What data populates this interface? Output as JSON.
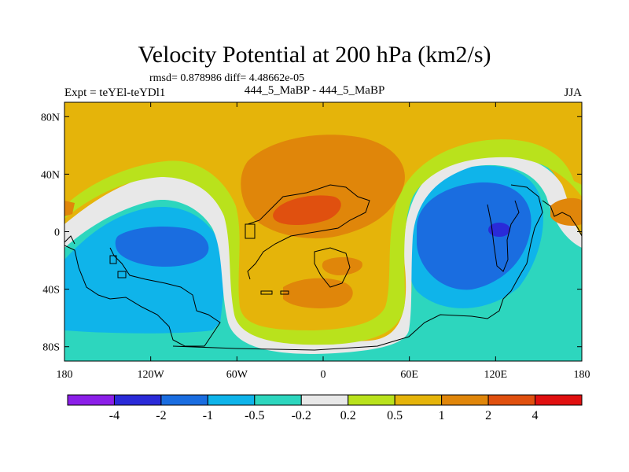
{
  "title": "Velocity Potential at 200 hPa (km2/s)",
  "stats_line": "rmsd= 0.878986 diff= 4.48662e-05",
  "left_label": "Expt = teYEl-teYDl1",
  "center_label": "444_5_MaBP - 444_5_MaBP",
  "right_label": "JJA",
  "map": {
    "projection": "cylindrical-equidistant",
    "lon_range": [
      -180,
      180
    ],
    "lat_range": [
      -90,
      90
    ],
    "x_ticks": [
      {
        "value": -180,
        "label": "180"
      },
      {
        "value": -120,
        "label": "120W"
      },
      {
        "value": -60,
        "label": "60W"
      },
      {
        "value": 0,
        "label": "0"
      },
      {
        "value": 60,
        "label": "60E"
      },
      {
        "value": 120,
        "label": "120E"
      },
      {
        "value": 180,
        "label": "180"
      }
    ],
    "y_ticks": [
      {
        "value": 80,
        "label": "80N"
      },
      {
        "value": 40,
        "label": "40N"
      },
      {
        "value": 0,
        "label": "0"
      },
      {
        "value": -40,
        "label": "40S"
      },
      {
        "value": -80,
        "label": "80S"
      }
    ]
  },
  "colorbar": {
    "colors": [
      "#8b1fe8",
      "#2a2ad8",
      "#1a6de0",
      "#0fb4ea",
      "#2dd6be",
      "#e8e8e8",
      "#b9e21c",
      "#e5b40a",
      "#e0860a",
      "#e0500f",
      "#e01010"
    ],
    "labels": [
      "-4",
      "-2",
      "-1",
      "-0.5",
      "-0.2",
      "0.2",
      "0.5",
      "1",
      "2",
      "4"
    ]
  }
}
